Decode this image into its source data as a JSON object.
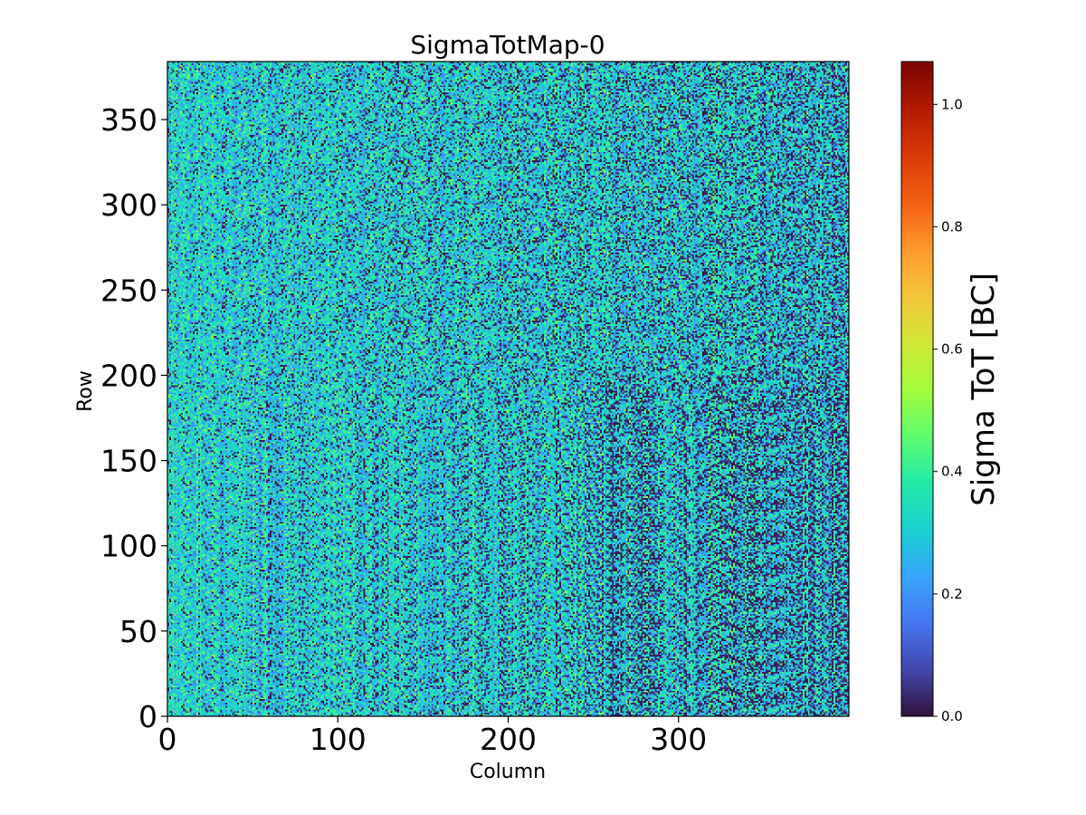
{
  "chart_data": {
    "type": "heatmap",
    "title": "SigmaTotMap-0",
    "xlabel": "Column",
    "ylabel": "Row",
    "xlim": [
      0,
      400
    ],
    "ylim": [
      0,
      384
    ],
    "x_ticks": [
      0,
      100,
      200,
      300
    ],
    "y_ticks": [
      0,
      50,
      100,
      150,
      200,
      250,
      300,
      350
    ],
    "colorbar": {
      "label": "Sigma ToT [BC]",
      "range": [
        0.0,
        1.07
      ],
      "ticks": [
        "0.0",
        "0.2",
        "0.4",
        "0.6",
        "0.8",
        "1.0"
      ],
      "colormap": "turbo"
    },
    "grid": {
      "columns": 400,
      "rows": 384,
      "value_range": [
        0.0,
        0.6
      ],
      "description_of_values": "pixel noise field, predominantly 0.2-0.45 with many near-zero cells, denser near-zero cells toward high column index"
    }
  }
}
